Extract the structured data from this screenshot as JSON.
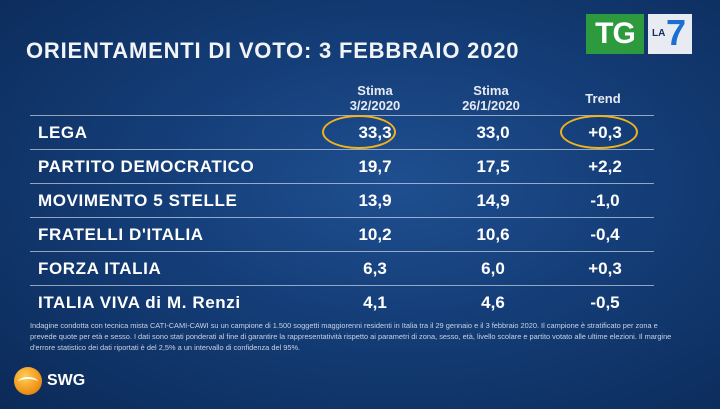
{
  "title": "ORIENTAMENTI DI VOTO: 3 FEBBRAIO 2020",
  "logo": {
    "tg": "TG",
    "la": "LA",
    "seven": "7"
  },
  "columns": {
    "c1": [
      "Stima",
      "3/2/2020"
    ],
    "c2": [
      "Stima",
      "26/1/2020"
    ],
    "c3": [
      "Trend"
    ]
  },
  "chart_data": {
    "type": "table",
    "title": "ORIENTAMENTI DI VOTO: 3 FEBBRAIO 2020",
    "columns": [
      "Stima 3/2/2020",
      "Stima 26/1/2020",
      "Trend"
    ],
    "rows": [
      {
        "party": "LEGA",
        "c1": "33,3",
        "c2": "33,0",
        "c3": "+0,3"
      },
      {
        "party": "PARTITO DEMOCRATICO",
        "c1": "19,7",
        "c2": "17,5",
        "c3": "+2,2"
      },
      {
        "party": "MOVIMENTO 5 STELLE",
        "c1": "13,9",
        "c2": "14,9",
        "c3": "-1,0"
      },
      {
        "party": "FRATELLI D'ITALIA",
        "c1": "10,2",
        "c2": "10,6",
        "c3": "-0,4"
      },
      {
        "party": "FORZA ITALIA",
        "c1": "6,3",
        "c2": "6,0",
        "c3": "+0,3"
      },
      {
        "party": "ITALIA VIVA di M. Renzi",
        "c1": "4,1",
        "c2": "4,6",
        "c3": "-0,5"
      }
    ]
  },
  "highlight_color": "#f2b21c",
  "note": "Indagine condotta con tecnica mista CATI-CAMI-CAWI su un campione di 1.500 soggetti maggiorenni residenti in Italia tra il 29 gennaio e il 3 febbraio 2020. Il campione è stratificato per zona e prevede quote per età e sesso. I dati sono stati ponderati al fine di garantire la rappresentatività rispetto ai parametri di zona, sesso, età, livello scolare e partito votato alle ultime elezioni. Il margine d'errore statistico dei dati riportati è del 2,5% a un intervallo di confidenza del 95%.",
  "brand": "SWG"
}
